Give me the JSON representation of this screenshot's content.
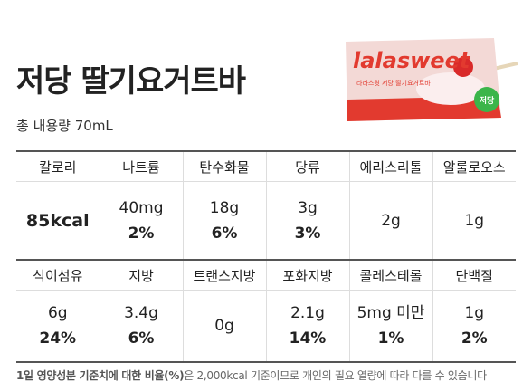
{
  "header": {
    "title": "저당 딸기요거트바",
    "subtitle": "총 내용량 70mL"
  },
  "product": {
    "brand": "lalasweet",
    "label": "라라스윗 저당 딸기요거트바",
    "badge": "저당"
  },
  "table": {
    "sections": [
      {
        "headers": [
          "칼로리",
          "나트륨",
          "탄수화물",
          "당류",
          "에리스리톨",
          "알룰로오스"
        ],
        "cells": [
          {
            "amount": "85kcal"
          },
          {
            "amount": "40mg",
            "percent": "2%"
          },
          {
            "amount": "18g",
            "percent": "6%"
          },
          {
            "amount": "3g",
            "percent": "3%"
          },
          {
            "amount": "2g"
          },
          {
            "amount": "1g"
          }
        ]
      },
      {
        "headers": [
          "식이섬유",
          "지방",
          "트랜스지방",
          "포화지방",
          "콜레스테롤",
          "단백질"
        ],
        "cells": [
          {
            "amount": "6g",
            "percent": "24%"
          },
          {
            "amount": "3.4g",
            "percent": "6%"
          },
          {
            "amount": "0g"
          },
          {
            "amount": "2.1g",
            "percent": "14%"
          },
          {
            "amount": "5mg 미만",
            "percent": "1%"
          },
          {
            "amount": "1g",
            "percent": "2%"
          }
        ]
      }
    ]
  },
  "footnote": {
    "bold": "1일 영양성분 기준치에 대한 비율(%)",
    "text": "은 2,000kcal 기준이므로 개인의 필요 열량에 따라 다를 수 있습니다"
  }
}
